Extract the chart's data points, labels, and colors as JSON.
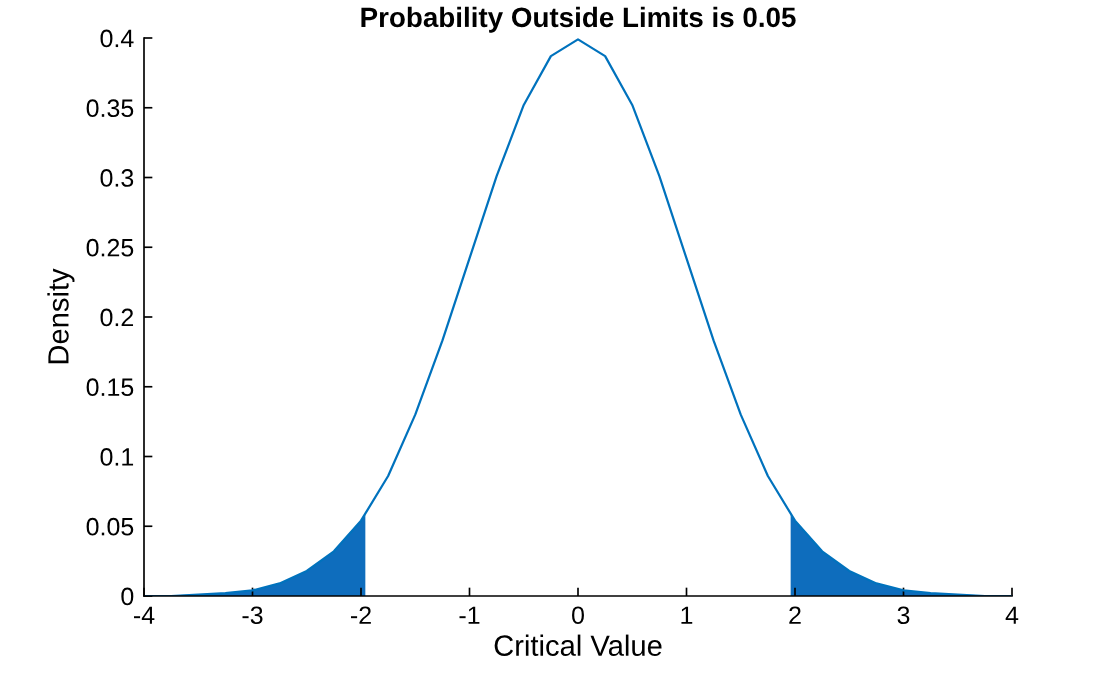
{
  "chart_data": {
    "type": "line",
    "title": "Probability Outside Limits is 0.05",
    "xlabel": "Critical Value",
    "ylabel": "Density",
    "xlim": [
      -4,
      4
    ],
    "ylim": [
      0,
      0.4
    ],
    "xticks": [
      -4,
      -3,
      -2,
      -1,
      0,
      1,
      2,
      3,
      4
    ],
    "yticks": [
      0,
      0.05,
      0.1,
      0.15,
      0.2,
      0.25,
      0.3,
      0.35,
      0.4
    ],
    "grid": false,
    "legend": false,
    "series": [
      {
        "color": "#0072bd",
        "x": [
          -4,
          -3.75,
          -3.5,
          -3.25,
          -3,
          -2.75,
          -2.5,
          -2.25,
          -2,
          -1.75,
          -1.5,
          -1.25,
          -1,
          -0.75,
          -0.5,
          -0.25,
          0,
          0.25,
          0.5,
          0.75,
          1,
          1.25,
          1.5,
          1.75,
          2,
          2.25,
          2.5,
          2.75,
          3,
          3.25,
          3.5,
          3.75,
          4
        ],
        "values": [
          0.0,
          0.0,
          0.001,
          0.002,
          0.004,
          0.009,
          0.018,
          0.032,
          0.054,
          0.086,
          0.13,
          0.183,
          0.242,
          0.301,
          0.352,
          0.387,
          0.399,
          0.387,
          0.352,
          0.301,
          0.242,
          0.183,
          0.13,
          0.086,
          0.054,
          0.032,
          0.018,
          0.009,
          0.004,
          0.002,
          0.001,
          0.0,
          0.0
        ]
      },
      {
        "type": "area",
        "color": "#0e6dbd",
        "x": [
          -4,
          -3.5,
          -3.25,
          -3,
          -2.75,
          -2.5,
          -2.25,
          -2,
          -1.96
        ],
        "values": [
          0.0,
          0.001,
          0.002,
          0.004,
          0.009,
          0.018,
          0.032,
          0.054,
          0.058
        ]
      },
      {
        "type": "area",
        "color": "#0e6dbd",
        "x": [
          1.96,
          2,
          2.25,
          2.5,
          2.75,
          3,
          3.25,
          3.5,
          4
        ],
        "values": [
          0.058,
          0.054,
          0.032,
          0.018,
          0.009,
          0.004,
          0.002,
          0.001,
          0.0
        ]
      }
    ]
  }
}
